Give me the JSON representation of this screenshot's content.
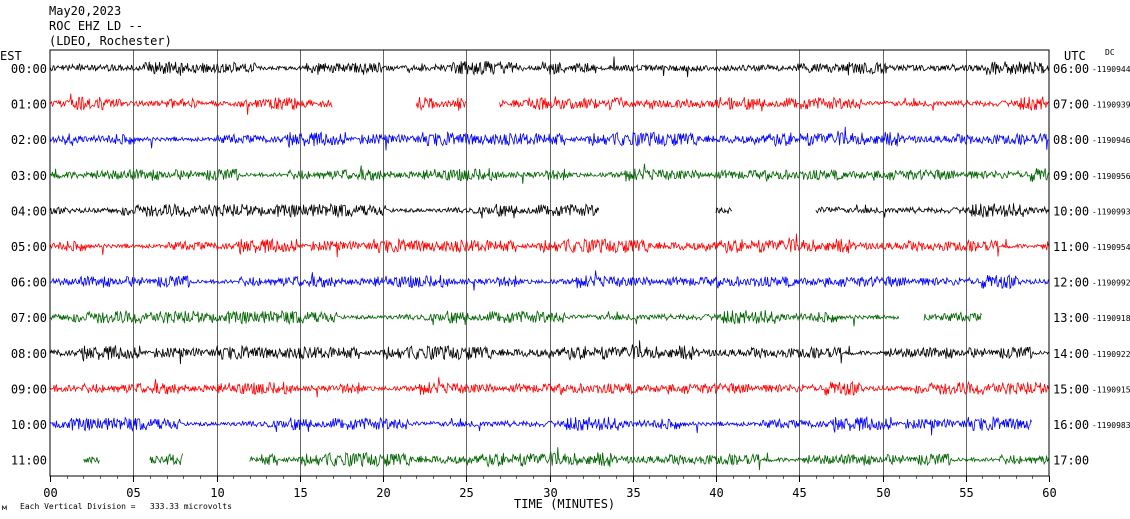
{
  "header": {
    "date": "May20,2023",
    "station": "ROC EHZ LD --",
    "network": "(LDEO, Rochester)"
  },
  "footer": {
    "scale_prefix": "Each Vertical Division =",
    "scale_value": "333.33 microvolts",
    "corner_glyph": "м"
  },
  "chart_data": {
    "type": "line",
    "title": "",
    "xlabel": "TIME (MINUTES)",
    "left_axis_label": "EST",
    "right_axis_label": "UTC",
    "dc_label": "DC",
    "xlim": [
      0,
      60
    ],
    "x_ticks": [
      "00",
      "05",
      "10",
      "15",
      "20",
      "25",
      "30",
      "35",
      "40",
      "45",
      "50",
      "55",
      "60"
    ],
    "grid": true,
    "trace_colors": [
      "#000000",
      "#ff0000",
      "#0000ff",
      "#006400"
    ],
    "rows": [
      {
        "est": "00:00",
        "utc": "06:00",
        "dc": "-1190944",
        "segments": [
          [
            0,
            60
          ]
        ]
      },
      {
        "est": "01:00",
        "utc": "07:00",
        "dc": "-1190939",
        "segments": [
          [
            0,
            17
          ],
          [
            22,
            25
          ],
          [
            27,
            60
          ]
        ]
      },
      {
        "est": "02:00",
        "utc": "08:00",
        "dc": "-1190946",
        "segments": [
          [
            0,
            60
          ]
        ]
      },
      {
        "est": "03:00",
        "utc": "09:00",
        "dc": "-1190956",
        "segments": [
          [
            0,
            60
          ]
        ]
      },
      {
        "est": "04:00",
        "utc": "10:00",
        "dc": "-1190993",
        "segments": [
          [
            0,
            33
          ],
          [
            40,
            41
          ],
          [
            46,
            60
          ]
        ]
      },
      {
        "est": "05:00",
        "utc": "11:00",
        "dc": "-1190954",
        "segments": [
          [
            0,
            60
          ]
        ]
      },
      {
        "est": "06:00",
        "utc": "12:00",
        "dc": "-1190992",
        "segments": [
          [
            0,
            60
          ]
        ]
      },
      {
        "est": "07:00",
        "utc": "13:00",
        "dc": "-1190918",
        "segments": [
          [
            0,
            51
          ],
          [
            52.5,
            56
          ]
        ]
      },
      {
        "est": "08:00",
        "utc": "14:00",
        "dc": "-1190922",
        "segments": [
          [
            0,
            60
          ]
        ]
      },
      {
        "est": "09:00",
        "utc": "15:00",
        "dc": "-1190915",
        "segments": [
          [
            0,
            60
          ]
        ]
      },
      {
        "est": "10:00",
        "utc": "16:00",
        "dc": "-1190983",
        "segments": [
          [
            0,
            59
          ]
        ]
      },
      {
        "est": "11:00",
        "utc": "17:00",
        "dc": "",
        "segments": [
          [
            2,
            3
          ],
          [
            6,
            8
          ],
          [
            12,
            60
          ]
        ]
      }
    ]
  }
}
